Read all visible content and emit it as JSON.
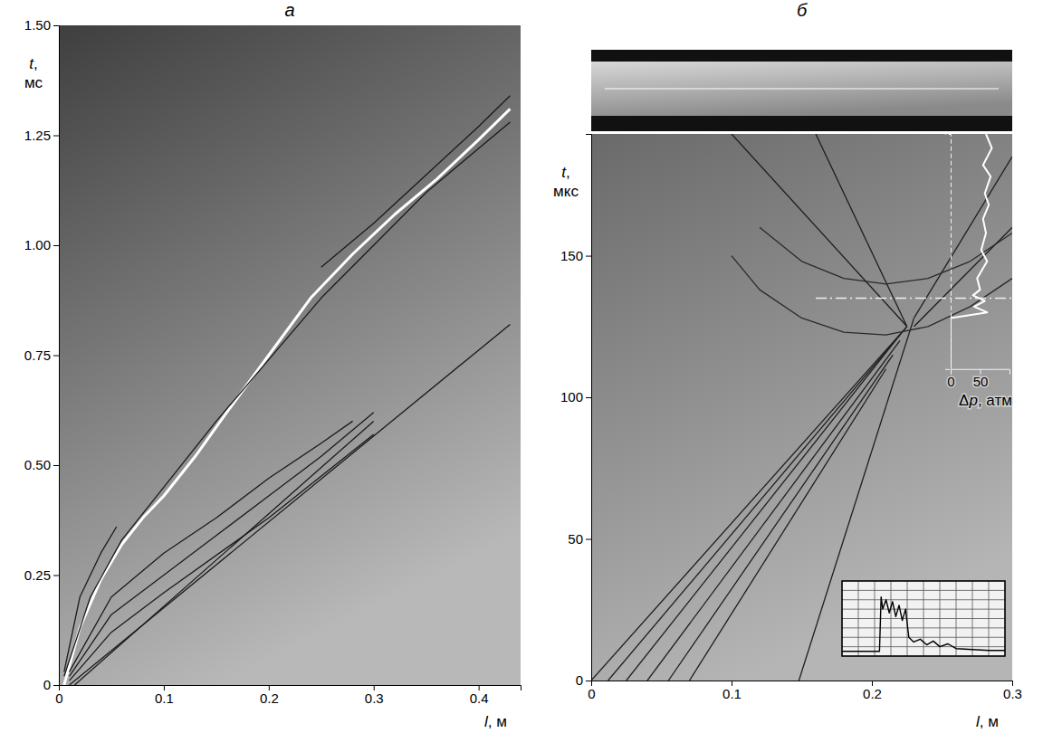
{
  "chart_data": [
    {
      "type": "line",
      "title": "а",
      "x_label": "l, м",
      "y_label": "t,\nмс",
      "xlim": [
        0,
        0.44
      ],
      "xticks": [
        0,
        0.1,
        0.2,
        0.3,
        0.4
      ],
      "ylim": [
        0,
        1.5
      ],
      "yticks": [
        0,
        0.25,
        {
          "value": 0.5,
          "label": "0.50"
        },
        0.75,
        {
          "value": 1,
          "label": "1.00"
        },
        1.25,
        {
          "value": 1.5,
          "label": "1.50"
        }
      ],
      "series": [
        {
          "color": "#ffffff",
          "x": [
            0.005,
            0.02,
            0.04,
            0.06,
            0.08,
            0.1,
            0.13,
            0.16,
            0.2,
            0.24,
            0.28,
            0.32,
            0.36,
            0.4,
            0.43
          ],
          "values": [
            0,
            0.13,
            0.24,
            0.32,
            0.38,
            0.43,
            0.52,
            0.62,
            0.75,
            0.88,
            0.98,
            1.07,
            1.15,
            1.24,
            1.31
          ]
        },
        {
          "color": "#1a1a1a",
          "x": [
            0.005,
            0.03,
            0.06,
            0.1,
            0.15,
            0.2,
            0.25,
            0.3,
            0.35,
            0.4,
            0.43
          ],
          "values": [
            0.02,
            0.2,
            0.33,
            0.45,
            0.6,
            0.74,
            0.88,
            1.0,
            1.12,
            1.22,
            1.28
          ]
        },
        {
          "color": "#1a1a1a",
          "x": [
            0.25,
            0.3,
            0.35,
            0.4,
            0.43
          ],
          "values": [
            0.95,
            1.05,
            1.16,
            1.27,
            1.34
          ]
        },
        {
          "color": "#1a1a1a",
          "x": [
            0.005,
            0.02,
            0.04,
            0.055
          ],
          "values": [
            0.03,
            0.2,
            0.3,
            0.36
          ]
        },
        {
          "color": "#1a1a1a",
          "x": [
            0.01,
            0.05,
            0.1,
            0.15,
            0.2,
            0.25,
            0.28
          ],
          "values": [
            0.03,
            0.2,
            0.3,
            0.38,
            0.47,
            0.55,
            0.6
          ]
        },
        {
          "color": "#1a1a1a",
          "x": [
            0.01,
            0.05,
            0.1,
            0.15,
            0.2,
            0.25,
            0.3
          ],
          "values": [
            0.02,
            0.16,
            0.25,
            0.34,
            0.43,
            0.52,
            0.62
          ]
        },
        {
          "color": "#1a1a1a",
          "x": [
            0.01,
            0.05,
            0.1,
            0.2,
            0.3
          ],
          "values": [
            0.01,
            0.12,
            0.21,
            0.38,
            0.57
          ]
        },
        {
          "color": "#1a1a1a",
          "x": [
            0.01,
            0.43
          ],
          "values": [
            0,
            0.82
          ]
        },
        {
          "color": "#1a1a1a",
          "x": [
            0.015,
            0.3
          ],
          "values": [
            0,
            0.6
          ]
        }
      ]
    },
    {
      "type": "line",
      "title": "б",
      "x_label": "l, м",
      "y_label": "t,\nмкс",
      "xlim": [
        0,
        0.3
      ],
      "xticks": [
        0,
        0.1,
        0.2,
        0.3
      ],
      "ylim": [
        0,
        193
      ],
      "yticks": [
        0,
        50,
        100,
        150
      ],
      "series": [
        {
          "color": "#1e1e1e",
          "x": [
            0,
            0.225
          ],
          "values": [
            0,
            125
          ]
        },
        {
          "color": "#1e1e1e",
          "x": [
            0.012,
            0.225
          ],
          "values": [
            0,
            125
          ]
        },
        {
          "color": "#1e1e1e",
          "x": [
            0.025,
            0.22
          ],
          "values": [
            0,
            122
          ]
        },
        {
          "color": "#1e1e1e",
          "x": [
            0.04,
            0.22
          ],
          "values": [
            0,
            120
          ]
        },
        {
          "color": "#1e1e1e",
          "x": [
            0.055,
            0.215
          ],
          "values": [
            0,
            115
          ]
        },
        {
          "color": "#1e1e1e",
          "x": [
            0.07,
            0.21
          ],
          "values": [
            0,
            110
          ]
        },
        {
          "color": "#1e1e1e",
          "x": [
            0.148,
            0.23
          ],
          "values": [
            0,
            128
          ]
        },
        {
          "color": "#1e1e1e",
          "x": [
            0.225,
            0.1
          ],
          "values": [
            125,
            193
          ]
        },
        {
          "color": "#1e1e1e",
          "x": [
            0.225,
            0.16
          ],
          "values": [
            125,
            193
          ]
        },
        {
          "color": "#1e1e1e",
          "x": [
            0.23,
            0.3
          ],
          "values": [
            125,
            160
          ]
        },
        {
          "color": "#1e1e1e",
          "x": [
            0.23,
            0.3
          ],
          "values": [
            128,
            185
          ]
        },
        {
          "color": "#2a2a2a",
          "x": [
            0.1,
            0.12,
            0.15,
            0.18,
            0.21,
            0.24,
            0.27,
            0.3
          ],
          "values": [
            150,
            138,
            128,
            123,
            122,
            125,
            132,
            142
          ]
        },
        {
          "color": "#2a2a2a",
          "x": [
            0.12,
            0.15,
            0.18,
            0.21,
            0.24,
            0.27,
            0.3
          ],
          "values": [
            160,
            148,
            142,
            140,
            142,
            148,
            158
          ]
        },
        {
          "color": "#f0f0f0",
          "line_style": "dashdot",
          "x": [
            0.16,
            0.3
          ],
          "values": [
            135,
            135
          ]
        }
      ]
    },
    {
      "type": "line",
      "x_label": "Δp, атм",
      "tick_labels": "x",
      "xlim": [
        0,
        100
      ],
      "xticks": [
        0,
        50
      ],
      "ylim": [
        110,
        193
      ],
      "series": [
        {
          "color": "#ffffff",
          "x": [
            0,
            0,
            62,
            40,
            58,
            38,
            50,
            45,
            62,
            52,
            60,
            55,
            65,
            58,
            68,
            55,
            70,
            60
          ],
          "values": [
            110,
            128,
            130,
            132,
            134,
            136,
            138,
            142,
            148,
            152,
            158,
            163,
            168,
            172,
            178,
            182,
            188,
            193
          ]
        }
      ]
    },
    {
      "type": "line",
      "tick_labels": false,
      "grid": true,
      "xlim": [
        0,
        10
      ],
      "xticks": [
        0,
        1,
        2,
        3,
        4,
        5,
        6,
        7,
        8,
        9,
        10
      ],
      "ylim": [
        0,
        8
      ],
      "yticks": [
        0,
        1,
        2,
        3,
        4,
        5,
        6,
        7,
        8
      ],
      "series": [
        {
          "color": "#000000",
          "x": [
            0,
            2.3,
            2.4,
            2.5,
            2.7,
            2.9,
            3.1,
            3.3,
            3.5,
            3.7,
            3.9,
            4.1,
            4.4,
            4.8,
            5.2,
            5.6,
            6.0,
            6.5,
            7.0,
            8,
            9,
            10
          ],
          "values": [
            0.5,
            0.5,
            6.3,
            5.0,
            6.0,
            4.6,
            5.8,
            4.2,
            5.4,
            3.8,
            5.0,
            2.0,
            1.5,
            1.8,
            1.2,
            1.6,
            1.0,
            1.3,
            0.8,
            0.7,
            0.6,
            0.6
          ]
        }
      ]
    }
  ]
}
